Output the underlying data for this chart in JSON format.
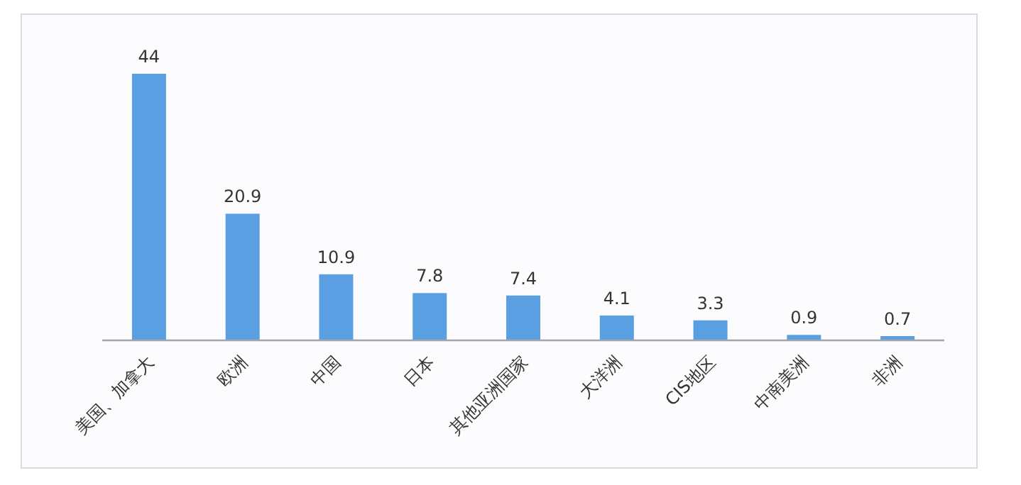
{
  "chart_data": {
    "type": "bar",
    "categories": [
      "美国、加拿大",
      "欧洲",
      "中国",
      "日本",
      "其他亚洲国家",
      "大洋洲",
      "CIS地区",
      "中南美洲",
      "非洲"
    ],
    "values": [
      44,
      20.9,
      10.9,
      7.8,
      7.4,
      4.1,
      3.3,
      0.9,
      0.7
    ],
    "color": "#5b9fe3",
    "data_labels": true
  }
}
